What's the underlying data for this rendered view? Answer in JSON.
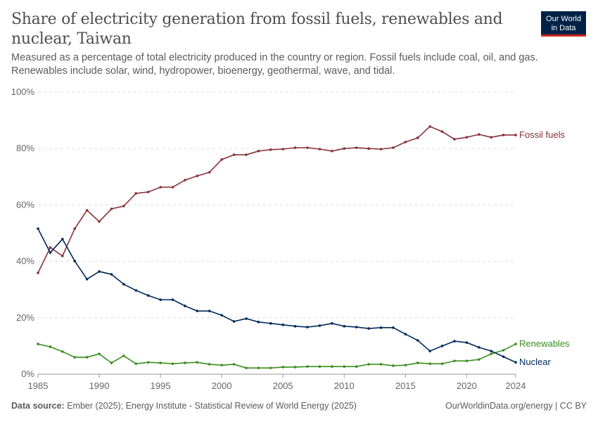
{
  "header": {
    "title": "Share of electricity generation from fossil fuels, renewables and nuclear, Taiwan",
    "subtitle": "Measured as a percentage of total electricity produced in the country or region. Fossil fuels include coal, oil, and gas. Renewables include solar, wind, hydropower, bioenergy, geothermal, wave, and tidal.",
    "logo": "Our World in Data"
  },
  "footer": {
    "source_label": "Data source:",
    "source": "Ember (2025); Energy Institute - Statistical Review of World Energy (2025)",
    "credit": "OurWorldinData.org/energy | CC BY"
  },
  "chart_data": {
    "type": "line",
    "title": "Share of electricity generation from fossil fuels, renewables and nuclear, Taiwan",
    "xlabel": "",
    "ylabel": "",
    "xlim": [
      1985,
      2024
    ],
    "ylim": [
      0,
      100
    ],
    "x_ticks": [
      "1985",
      "1990",
      "1995",
      "2000",
      "2005",
      "2010",
      "2015",
      "2020",
      "2024"
    ],
    "y_ticks": [
      "0%",
      "20%",
      "40%",
      "60%",
      "80%",
      "100%"
    ],
    "grid": "horizontal dashed",
    "legend": "inline-right",
    "x": [
      1985,
      1986,
      1987,
      1988,
      1989,
      1990,
      1991,
      1992,
      1993,
      1994,
      1995,
      1996,
      1997,
      1998,
      1999,
      2000,
      2001,
      2002,
      2003,
      2004,
      2005,
      2006,
      2007,
      2008,
      2009,
      2010,
      2011,
      2012,
      2013,
      2014,
      2015,
      2016,
      2017,
      2018,
      2019,
      2020,
      2021,
      2022,
      2023,
      2024
    ],
    "series": [
      {
        "name": "Fossil fuels",
        "color": "#883039",
        "values": [
          35.9,
          44.9,
          41.9,
          51.6,
          58.1,
          54.1,
          58.6,
          59.6,
          64.1,
          64.6,
          66.3,
          66.3,
          68.8,
          70.3,
          71.6,
          76.1,
          77.8,
          77.8,
          79.1,
          79.6,
          79.8,
          80.3,
          80.3,
          79.8,
          79.1,
          80.0,
          80.3,
          80.0,
          79.8,
          80.3,
          82.3,
          83.8,
          87.8,
          86.0,
          83.3,
          84.0,
          85.0,
          84.0,
          84.8,
          84.8
        ]
      },
      {
        "name": "Renewables",
        "color": "#3a8e1e",
        "values": [
          10.7,
          9.7,
          8.0,
          6.0,
          6.0,
          7.2,
          4.0,
          6.5,
          3.7,
          4.2,
          4.0,
          3.7,
          4.0,
          4.2,
          3.5,
          3.2,
          3.5,
          2.2,
          2.2,
          2.2,
          2.5,
          2.5,
          2.7,
          2.7,
          2.7,
          2.7,
          2.7,
          3.5,
          3.5,
          3.0,
          3.2,
          4.0,
          3.7,
          3.7,
          4.7,
          4.7,
          5.2,
          7.2,
          8.5,
          10.7
        ]
      },
      {
        "name": "Nuclear",
        "color": "#00295b",
        "values": [
          51.6,
          43.1,
          47.9,
          40.1,
          33.7,
          36.4,
          35.4,
          31.9,
          29.7,
          27.9,
          26.4,
          26.4,
          24.2,
          22.4,
          22.4,
          20.9,
          18.7,
          19.7,
          18.5,
          18.0,
          17.5,
          17.0,
          16.7,
          17.2,
          18.0,
          17.0,
          16.7,
          16.2,
          16.5,
          16.5,
          14.2,
          12.0,
          8.2,
          10.0,
          11.7,
          11.2,
          9.5,
          8.2,
          6.2,
          4.2
        ]
      }
    ]
  }
}
